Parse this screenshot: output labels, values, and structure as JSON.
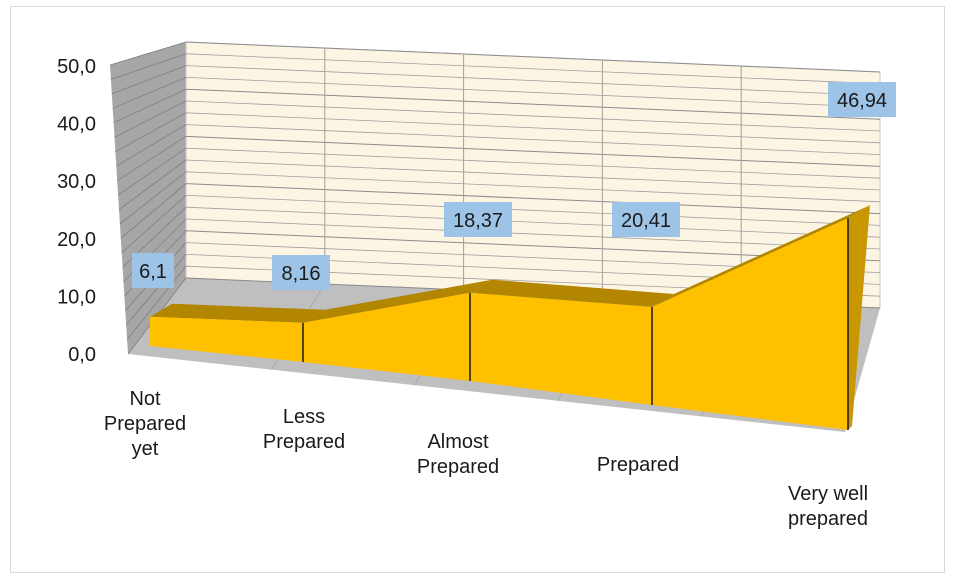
{
  "chart_data": {
    "type": "area",
    "three_d": true,
    "categories": [
      "Not Prepared yet",
      "Less Prepared",
      "Almost Prepared",
      "Prepared",
      "Very well prepared"
    ],
    "category_lines": [
      [
        "Not",
        "Prepared",
        "yet"
      ],
      [
        "Less",
        "Prepared"
      ],
      [
        "Almost",
        "Prepared"
      ],
      [
        "Prepared"
      ],
      [
        "Very well",
        "prepared"
      ]
    ],
    "values": [
      6.1,
      8.16,
      18.37,
      20.41,
      46.94
    ],
    "data_labels": [
      "6,1",
      "8,16",
      "18,37",
      "20,41",
      "46,94"
    ],
    "y_ticks": [
      "0,0",
      "10,0",
      "20,0",
      "30,0",
      "40,0",
      "50,0"
    ],
    "ylim": [
      0,
      50
    ],
    "title": "",
    "xlabel": "",
    "ylabel": "",
    "grid": true,
    "legend": "none",
    "colors": {
      "area_front": "#ffc000",
      "area_top": "#b38600",
      "back_wall": "#fdf5e4",
      "side_wall": "#a6a6a6",
      "floor": "#bfbfbf",
      "grid": "#9f9f9f",
      "label_box": "#9dc3e6"
    }
  }
}
